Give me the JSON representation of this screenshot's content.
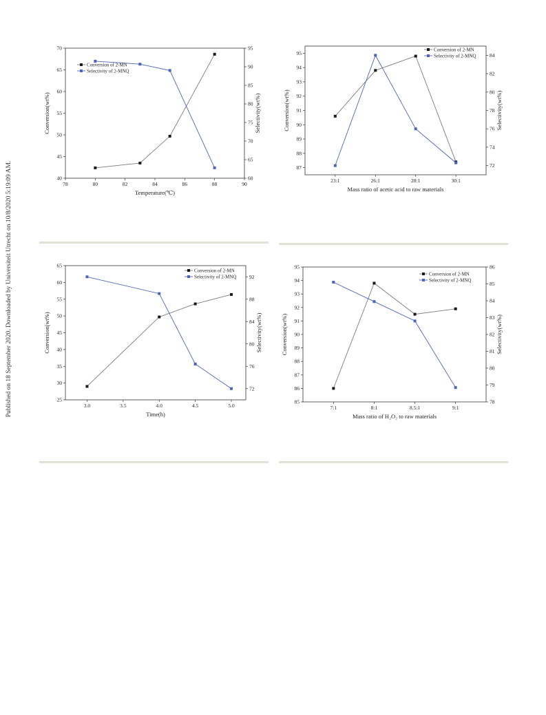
{
  "side_note": "Published on 18 September 2020. Downloaded by Universiteit Utrecht on 10/8/2020 5:19:09 AM.",
  "colors": {
    "conversion": "#1a1a1a",
    "selectivity": "#4a64b8",
    "separator": "#e3e0d4"
  },
  "chart_data": [
    {
      "type": "line",
      "xlabel": "Temperature(℃)",
      "ylabel": "Conversion(wt%)",
      "y2label": "Selectivity(wt%)",
      "x_type": "numeric",
      "xlim": [
        78,
        90
      ],
      "xticks": [
        "78",
        "80",
        "82",
        "84",
        "86",
        "88",
        "90"
      ],
      "ylim": [
        40,
        70
      ],
      "yticks": [
        "40",
        "45",
        "50",
        "55",
        "60",
        "65",
        "70"
      ],
      "y2lim": [
        60,
        95
      ],
      "y2ticks": [
        "60",
        "65",
        "70",
        "75",
        "80",
        "85",
        "90",
        "95"
      ],
      "legend_position": "top-left",
      "series": [
        {
          "name": "Conversion of 2-MN",
          "axis": "left",
          "marker": "square",
          "x": [
            80,
            83,
            85,
            88
          ],
          "values": [
            42.4,
            43.5,
            49.7,
            68.6
          ]
        },
        {
          "name": "Selectivity of 2-MNQ",
          "axis": "right",
          "marker": "square",
          "x": [
            80,
            83,
            85,
            88
          ],
          "values": [
            91.5,
            90.7,
            89.0,
            62.8
          ]
        }
      ]
    },
    {
      "type": "line",
      "xlabel": "Mass ratio of acetic acid to raw materials",
      "ylabel": "Conversion(wt%)",
      "y2label": "Selectivity(wt%)",
      "x_type": "category",
      "categories": [
        "23:1",
        "26:1",
        "28:1",
        "30:1"
      ],
      "ylim": [
        86.5,
        95.5
      ],
      "yticks": [
        "87",
        "88",
        "89",
        "90",
        "91",
        "92",
        "93",
        "94",
        "95"
      ],
      "y2lim": [
        71,
        85
      ],
      "y2ticks": [
        "72",
        "74",
        "76",
        "78",
        "80",
        "82",
        "84"
      ],
      "legend_position": "top-right",
      "series": [
        {
          "name": "Conversion of 2-MN",
          "axis": "left",
          "marker": "square",
          "values": [
            90.6,
            93.8,
            94.8,
            87.4
          ]
        },
        {
          "name": "Selectivity of 2-MNQ",
          "axis": "right",
          "marker": "square",
          "values": [
            72.0,
            84.0,
            76.0,
            72.3
          ]
        }
      ]
    },
    {
      "type": "line",
      "xlabel": "Time(h)",
      "ylabel": "Conversion(wt%)",
      "y2label": "Selectivity(wt%)",
      "x_type": "numeric",
      "xlim": [
        2.7,
        5.2
      ],
      "xticks": [
        "3.0",
        "3.5",
        "4.0",
        "4.5",
        "5.0"
      ],
      "ylim": [
        25,
        65
      ],
      "yticks": [
        "25",
        "30",
        "35",
        "40",
        "45",
        "50",
        "55",
        "60",
        "65"
      ],
      "y2lim": [
        70,
        94
      ],
      "y2ticks": [
        "72",
        "76",
        "80",
        "84",
        "88",
        "92"
      ],
      "legend_position": "top-right",
      "series": [
        {
          "name": "Conversion of 2-MN",
          "axis": "left",
          "marker": "square",
          "x": [
            3.0,
            4.0,
            4.5,
            5.0
          ],
          "values": [
            29.0,
            49.7,
            53.6,
            56.4
          ]
        },
        {
          "name": "Selectivity of 2-MNQ",
          "axis": "right",
          "marker": "square",
          "x": [
            3.0,
            4.0,
            4.5,
            5.0
          ],
          "values": [
            92.0,
            89.0,
            76.4,
            72.0
          ]
        }
      ]
    },
    {
      "type": "line",
      "xlabel": "Mass ratio of H₂O₂ to raw materials",
      "ylabel": "Conversion(wt%)",
      "y2label": "Selectivity(wt%)",
      "x_type": "category",
      "categories": [
        "7:1",
        "8:1",
        "8.5:1",
        "9:1"
      ],
      "ylim": [
        85,
        95
      ],
      "yticks": [
        "85",
        "86",
        "87",
        "88",
        "89",
        "90",
        "91",
        "92",
        "93",
        "94",
        "95"
      ],
      "y2lim": [
        78,
        86
      ],
      "y2ticks": [
        "78",
        "79",
        "80",
        "81",
        "82",
        "83",
        "84",
        "85",
        "86"
      ],
      "legend_position": "top-right",
      "series": [
        {
          "name": "Conversion of 2-MN",
          "axis": "left",
          "marker": "square",
          "values": [
            86.0,
            93.8,
            91.5,
            91.9
          ]
        },
        {
          "name": "Selectivity of 2-MNQ",
          "axis": "right",
          "marker": "square",
          "values": [
            85.1,
            83.95,
            82.8,
            78.85
          ]
        }
      ]
    }
  ]
}
